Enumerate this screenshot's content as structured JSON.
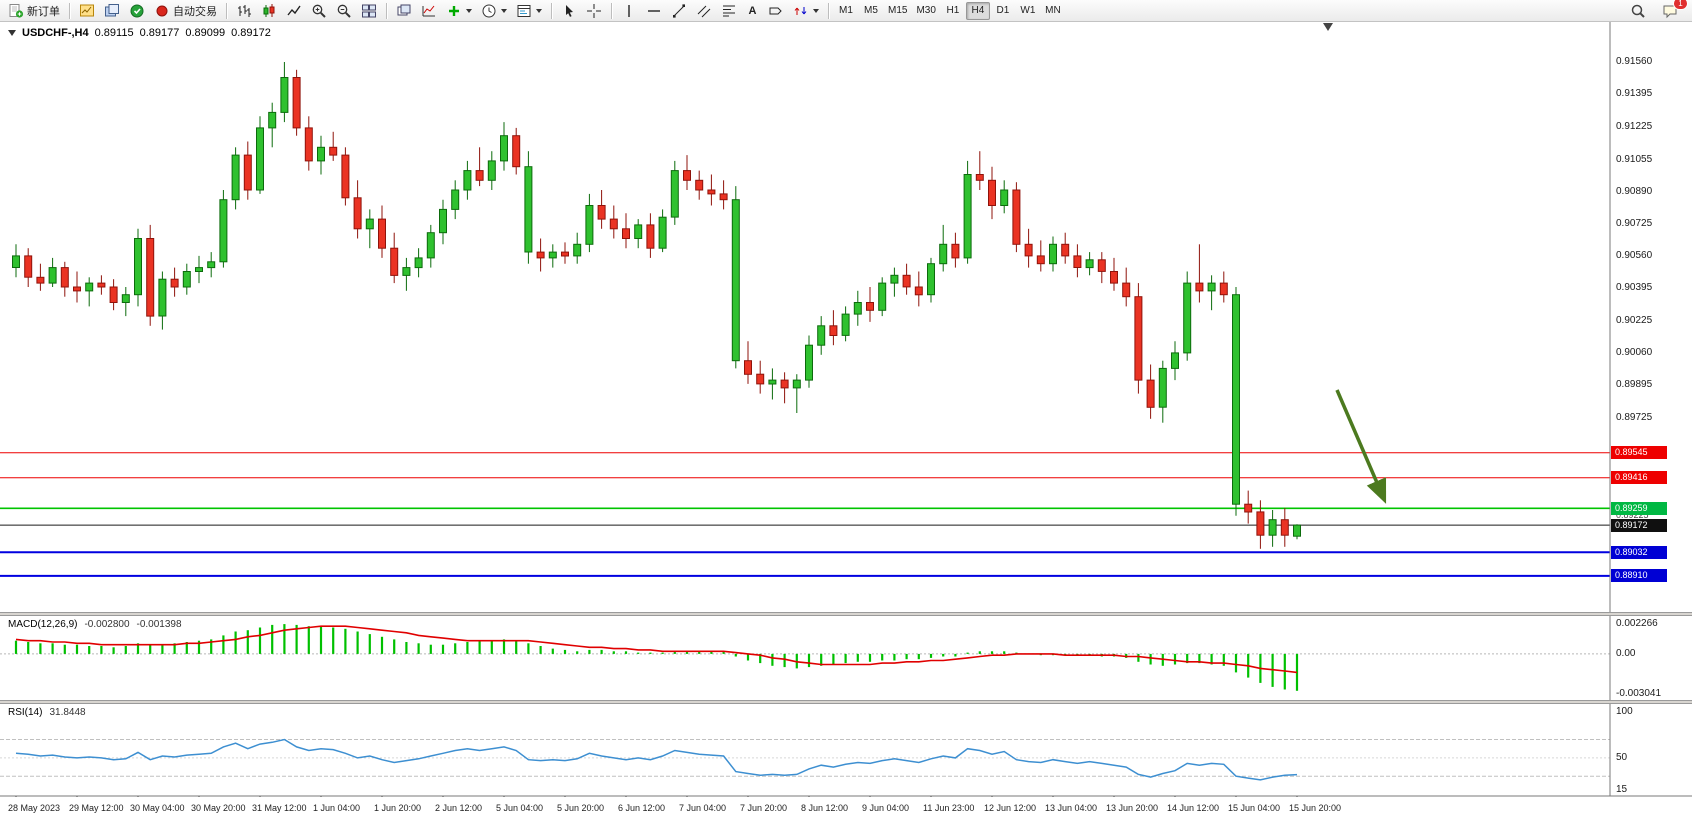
{
  "toolbar": {
    "new_order_label": "新订单",
    "auto_trading_label": "自动交易",
    "text_tool_label": "A",
    "timeframes": [
      "M1",
      "M5",
      "M15",
      "M30",
      "H1",
      "H4",
      "D1",
      "W1",
      "MN"
    ],
    "active_timeframe": "H4",
    "notification_count": "1",
    "icons": [
      "new-order",
      "charts",
      "profiles",
      "data-window",
      "auto-trading",
      "bar-chart",
      "candlestick-chart",
      "line-chart",
      "zoom-in",
      "zoom-out",
      "tile-windows",
      "arrange-windows",
      "indicators",
      "add-indicator",
      "periods",
      "templates",
      "cursor",
      "crosshair",
      "vertical-line",
      "horizontal-line",
      "trendline",
      "equidistant-channel",
      "fibonacci",
      "text",
      "text-label",
      "arrows",
      "search",
      "chat"
    ]
  },
  "chart_title": {
    "symbol": "USDCHF-,H4",
    "open": "0.89115",
    "high": "0.89177",
    "low": "0.89099",
    "close": "0.89172"
  },
  "colors": {
    "bull": "#2fc12f",
    "bull_border": "#0c6b0c",
    "bear": "#ea3323",
    "bear_border": "#8f130b",
    "line_red": "#ee0000",
    "line_green": "#00c400",
    "line_blue": "#0000e0",
    "current": "#1a1a1a",
    "badge_red": "#ee0000",
    "badge_green": "#00b843",
    "badge_blue": "#0000d4",
    "badge_black": "#101010",
    "macd_hist": "#00c000",
    "macd_signal": "#e00000",
    "rsi_line": "#3d8fd1",
    "arrow": "#4c7a1f"
  },
  "chart_data": {
    "type": "candlestick",
    "symbol": "USDCHF",
    "timeframe": "H4",
    "price_range": {
      "top": 0.9165,
      "bottom": 0.886
    },
    "price_axis": [
      "0.91560",
      "0.91395",
      "0.91225",
      "0.91055",
      "0.90890",
      "0.90725",
      "0.90560",
      "0.90395",
      "0.90225",
      "0.90060",
      "0.89895",
      "0.89725"
    ],
    "levels": [
      {
        "value": "0.89545",
        "price": 0.89545,
        "style": "red"
      },
      {
        "value": "0.89416",
        "price": 0.89416,
        "style": "red"
      },
      {
        "value": "0.89259",
        "price": 0.89259,
        "style": "green"
      },
      {
        "value": "0.89225",
        "price": 0.89225,
        "style": "plain"
      },
      {
        "value": "0.89172",
        "price": 0.89172,
        "style": "current"
      },
      {
        "value": "0.89032",
        "price": 0.89032,
        "style": "blue"
      },
      {
        "value": "0.88910",
        "price": 0.8891,
        "style": "blue"
      }
    ],
    "time_labels": [
      "28 May 2023",
      "29 May 12:00",
      "30 May 04:00",
      "30 May 20:00",
      "31 May 12:00",
      "1 Jun 04:00",
      "1 Jun 20:00",
      "2 Jun 12:00",
      "5 Jun 04:00",
      "5 Jun 20:00",
      "6 Jun 12:00",
      "7 Jun 04:00",
      "7 Jun 20:00",
      "8 Jun 12:00",
      "9 Jun 04:00",
      "11 Jun 23:00",
      "12 Jun 12:00",
      "13 Jun 04:00",
      "13 Jun 20:00",
      "14 Jun 12:00",
      "15 Jun 04:00",
      "15 Jun 20:00"
    ],
    "annotations": [
      {
        "type": "arrow-down-right",
        "color": "#4c7a1f"
      }
    ],
    "ohlc": [
      [
        0.905,
        0.9062,
        0.9045,
        0.9056
      ],
      [
        0.9056,
        0.906,
        0.904,
        0.9045
      ],
      [
        0.9045,
        0.9052,
        0.9038,
        0.9042
      ],
      [
        0.9042,
        0.9055,
        0.904,
        0.905
      ],
      [
        0.905,
        0.9053,
        0.9035,
        0.904
      ],
      [
        0.904,
        0.9048,
        0.9032,
        0.9038
      ],
      [
        0.9038,
        0.9045,
        0.903,
        0.9042
      ],
      [
        0.9042,
        0.9046,
        0.9036,
        0.904
      ],
      [
        0.904,
        0.9044,
        0.9028,
        0.9032
      ],
      [
        0.9032,
        0.904,
        0.9025,
        0.9036
      ],
      [
        0.9036,
        0.907,
        0.903,
        0.9065
      ],
      [
        0.9065,
        0.9072,
        0.902,
        0.9025
      ],
      [
        0.9025,
        0.9048,
        0.9018,
        0.9044
      ],
      [
        0.9044,
        0.905,
        0.9035,
        0.904
      ],
      [
        0.904,
        0.9052,
        0.9036,
        0.9048
      ],
      [
        0.9048,
        0.9056,
        0.9042,
        0.905
      ],
      [
        0.905,
        0.9058,
        0.9045,
        0.9053
      ],
      [
        0.9053,
        0.909,
        0.905,
        0.9085
      ],
      [
        0.9085,
        0.9112,
        0.908,
        0.9108
      ],
      [
        0.9108,
        0.9115,
        0.9085,
        0.909
      ],
      [
        0.909,
        0.9128,
        0.9088,
        0.9122
      ],
      [
        0.9122,
        0.9135,
        0.9112,
        0.913
      ],
      [
        0.913,
        0.9156,
        0.9125,
        0.9148
      ],
      [
        0.9148,
        0.9152,
        0.9118,
        0.9122
      ],
      [
        0.9122,
        0.9128,
        0.91,
        0.9105
      ],
      [
        0.9105,
        0.9118,
        0.9098,
        0.9112
      ],
      [
        0.9112,
        0.912,
        0.9105,
        0.9108
      ],
      [
        0.9108,
        0.9112,
        0.9082,
        0.9086
      ],
      [
        0.9086,
        0.9095,
        0.9065,
        0.907
      ],
      [
        0.907,
        0.908,
        0.906,
        0.9075
      ],
      [
        0.9075,
        0.9082,
        0.9055,
        0.906
      ],
      [
        0.906,
        0.9068,
        0.9042,
        0.9046
      ],
      [
        0.9046,
        0.9055,
        0.9038,
        0.905
      ],
      [
        0.905,
        0.906,
        0.9045,
        0.9055
      ],
      [
        0.9055,
        0.9072,
        0.905,
        0.9068
      ],
      [
        0.9068,
        0.9085,
        0.9062,
        0.908
      ],
      [
        0.908,
        0.9095,
        0.9075,
        0.909
      ],
      [
        0.909,
        0.9105,
        0.9085,
        0.91
      ],
      [
        0.91,
        0.9112,
        0.9092,
        0.9095
      ],
      [
        0.9095,
        0.911,
        0.909,
        0.9105
      ],
      [
        0.9105,
        0.9125,
        0.91,
        0.9118
      ],
      [
        0.9118,
        0.9122,
        0.9098,
        0.9102
      ],
      [
        0.9102,
        0.911,
        0.9052,
        0.9058,
        "up"
      ],
      [
        0.9058,
        0.9065,
        0.9048,
        0.9055
      ],
      [
        0.9055,
        0.9062,
        0.905,
        0.9058
      ],
      [
        0.9058,
        0.9063,
        0.9052,
        0.9056
      ],
      [
        0.9056,
        0.9068,
        0.9052,
        0.9062
      ],
      [
        0.9062,
        0.9088,
        0.9058,
        0.9082
      ],
      [
        0.9082,
        0.909,
        0.907,
        0.9075
      ],
      [
        0.9075,
        0.9082,
        0.9065,
        0.907
      ],
      [
        0.907,
        0.9078,
        0.906,
        0.9065
      ],
      [
        0.9065,
        0.9075,
        0.906,
        0.9072
      ],
      [
        0.9072,
        0.9078,
        0.9055,
        0.906
      ],
      [
        0.906,
        0.908,
        0.9058,
        0.9076
      ],
      [
        0.9076,
        0.9105,
        0.9072,
        0.91
      ],
      [
        0.91,
        0.9108,
        0.909,
        0.9095
      ],
      [
        0.9095,
        0.91,
        0.9085,
        0.909
      ],
      [
        0.909,
        0.9098,
        0.9082,
        0.9088
      ],
      [
        0.9088,
        0.9095,
        0.908,
        0.9085
      ],
      [
        0.9085,
        0.9092,
        0.8998,
        0.9002,
        "up"
      ],
      [
        0.9002,
        0.9012,
        0.899,
        0.8995
      ],
      [
        0.8995,
        0.9002,
        0.8985,
        0.899
      ],
      [
        0.899,
        0.8998,
        0.8982,
        0.8992
      ],
      [
        0.8992,
        0.8996,
        0.898,
        0.8988
      ],
      [
        0.8988,
        0.8995,
        0.8975,
        0.8992
      ],
      [
        0.8992,
        0.9015,
        0.8988,
        0.901
      ],
      [
        0.901,
        0.9025,
        0.9005,
        0.902
      ],
      [
        0.902,
        0.9028,
        0.901,
        0.9015
      ],
      [
        0.9015,
        0.903,
        0.9012,
        0.9026
      ],
      [
        0.9026,
        0.9038,
        0.902,
        0.9032
      ],
      [
        0.9032,
        0.904,
        0.9022,
        0.9028
      ],
      [
        0.9028,
        0.9045,
        0.9025,
        0.9042
      ],
      [
        0.9042,
        0.905,
        0.9035,
        0.9046
      ],
      [
        0.9046,
        0.9052,
        0.9036,
        0.904
      ],
      [
        0.904,
        0.9048,
        0.903,
        0.9036
      ],
      [
        0.9036,
        0.9055,
        0.9032,
        0.9052
      ],
      [
        0.9052,
        0.9072,
        0.9048,
        0.9062
      ],
      [
        0.9062,
        0.9068,
        0.905,
        0.9055
      ],
      [
        0.9055,
        0.9105,
        0.9052,
        0.9098
      ],
      [
        0.9098,
        0.911,
        0.909,
        0.9095
      ],
      [
        0.9095,
        0.9102,
        0.9075,
        0.9082
      ],
      [
        0.9082,
        0.9095,
        0.9078,
        0.909
      ],
      [
        0.909,
        0.9094,
        0.9058,
        0.9062
      ],
      [
        0.9062,
        0.907,
        0.905,
        0.9056
      ],
      [
        0.9056,
        0.9064,
        0.9048,
        0.9052
      ],
      [
        0.9052,
        0.9066,
        0.9048,
        0.9062
      ],
      [
        0.9062,
        0.9068,
        0.9052,
        0.9056
      ],
      [
        0.9056,
        0.9062,
        0.9045,
        0.905
      ],
      [
        0.905,
        0.9058,
        0.9046,
        0.9054
      ],
      [
        0.9054,
        0.9058,
        0.9042,
        0.9048
      ],
      [
        0.9048,
        0.9055,
        0.9038,
        0.9042
      ],
      [
        0.9042,
        0.905,
        0.903,
        0.9035
      ],
      [
        0.9035,
        0.9042,
        0.8985,
        0.8992
      ],
      [
        0.8992,
        0.9,
        0.8972,
        0.8978
      ],
      [
        0.8978,
        0.9002,
        0.897,
        0.8998
      ],
      [
        0.8998,
        0.9012,
        0.8992,
        0.9006
      ],
      [
        0.9006,
        0.9048,
        0.9002,
        0.9042
      ],
      [
        0.9042,
        0.9062,
        0.9032,
        0.9038
      ],
      [
        0.9038,
        0.9046,
        0.9028,
        0.9042
      ],
      [
        0.9042,
        0.9048,
        0.9032,
        0.9036
      ],
      [
        0.9036,
        0.904,
        0.8922,
        0.8928,
        "up"
      ],
      [
        0.8928,
        0.8935,
        0.8918,
        0.8924
      ],
      [
        0.8924,
        0.893,
        0.8905,
        0.8912
      ],
      [
        0.8912,
        0.8925,
        0.8906,
        0.892
      ],
      [
        0.892,
        0.8926,
        0.8906,
        0.8912
      ],
      [
        0.89115,
        0.89177,
        0.89099,
        0.89172
      ]
    ],
    "macd": {
      "name": "MACD(12,26,9)",
      "main_value": "-0.002800",
      "signal_value": "-0.001398",
      "axis": [
        "0.002266",
        "0.00",
        "-0.003041"
      ],
      "histogram": [
        0.001,
        0.0009,
        0.0008,
        0.0008,
        0.0007,
        0.0007,
        0.0006,
        0.0006,
        0.0005,
        0.0006,
        0.0008,
        0.0007,
        0.0007,
        0.0008,
        0.0009,
        0.001,
        0.0011,
        0.0014,
        0.0017,
        0.0018,
        0.002,
        0.0022,
        0.00226,
        0.0022,
        0.0021,
        0.0021,
        0.002,
        0.0019,
        0.0017,
        0.0015,
        0.0013,
        0.0011,
        0.0009,
        0.0008,
        0.0007,
        0.0007,
        0.0008,
        0.0009,
        0.001,
        0.001,
        0.0011,
        0.001,
        0.0008,
        0.0006,
        0.0004,
        0.0003,
        0.0002,
        0.0003,
        0.0003,
        0.0002,
        0.0002,
        0.0001,
        0.0001,
        0.0001,
        0.0002,
        0.0002,
        0.0002,
        0.0002,
        0.0002,
        -0.0002,
        -0.0005,
        -0.0007,
        -0.0009,
        -0.001,
        -0.0011,
        -0.001,
        -0.0009,
        -0.0008,
        -0.0007,
        -0.0006,
        -0.0006,
        -0.0005,
        -0.0005,
        -0.0004,
        -0.0004,
        -0.0003,
        -0.0002,
        -0.0002,
        0.0001,
        0.0002,
        0.0002,
        0.0002,
        0.0001,
        0.0,
        -0.0001,
        -0.0001,
        -0.0001,
        -0.0001,
        -0.0001,
        -0.0002,
        -0.0002,
        -0.0003,
        -0.0006,
        -0.0008,
        -0.0009,
        -0.0008,
        -0.0007,
        -0.0007,
        -0.0008,
        -0.0009,
        -0.0014,
        -0.0018,
        -0.0022,
        -0.0025,
        -0.0027,
        -0.0028
      ],
      "signal": [
        0.0011,
        0.001,
        0.001,
        0.0009,
        0.0009,
        0.0008,
        0.0008,
        0.0007,
        0.0007,
        0.0007,
        0.0007,
        0.0007,
        0.0007,
        0.0007,
        0.0008,
        0.0008,
        0.0009,
        0.001,
        0.0011,
        0.0013,
        0.0014,
        0.0016,
        0.0018,
        0.0019,
        0.002,
        0.0021,
        0.0021,
        0.0021,
        0.002,
        0.0019,
        0.0018,
        0.0017,
        0.0016,
        0.0014,
        0.0013,
        0.0012,
        0.0011,
        0.001,
        0.001,
        0.001,
        0.001,
        0.001,
        0.001,
        0.0009,
        0.0008,
        0.0007,
        0.0006,
        0.0005,
        0.0005,
        0.0004,
        0.0004,
        0.0003,
        0.0003,
        0.0002,
        0.0002,
        0.0002,
        0.0002,
        0.0002,
        0.0002,
        0.0001,
        0.0,
        -0.0001,
        -0.0003,
        -0.0004,
        -0.0006,
        -0.0007,
        -0.0008,
        -0.0008,
        -0.0008,
        -0.0008,
        -0.0008,
        -0.0007,
        -0.0007,
        -0.0006,
        -0.0006,
        -0.0005,
        -0.0005,
        -0.0004,
        -0.0003,
        -0.0002,
        -0.0001,
        -0.0001,
        0.0,
        0.0,
        0.0,
        0.0,
        -0.0001,
        -0.0001,
        -0.0001,
        -0.0001,
        -0.0001,
        -0.0002,
        -0.0002,
        -0.0003,
        -0.0004,
        -0.0005,
        -0.0006,
        -0.0006,
        -0.0007,
        -0.0007,
        -0.0008,
        -0.0009,
        -0.0011,
        -0.0012,
        -0.0013,
        -0.0014
      ]
    },
    "rsi": {
      "name": "RSI(14)",
      "value": "31.8448",
      "axis": [
        "100",
        "50",
        "15"
      ],
      "levels": [
        70,
        30
      ],
      "values": [
        55,
        54,
        52,
        53,
        51,
        50,
        51,
        50,
        48,
        49,
        56,
        48,
        52,
        51,
        53,
        54,
        55,
        62,
        66,
        60,
        65,
        67,
        70,
        62,
        58,
        60,
        59,
        55,
        50,
        52,
        48,
        45,
        47,
        49,
        52,
        55,
        58,
        60,
        58,
        60,
        62,
        58,
        48,
        47,
        48,
        47,
        49,
        55,
        52,
        50,
        48,
        50,
        48,
        52,
        58,
        56,
        54,
        53,
        52,
        35,
        33,
        31,
        32,
        31,
        32,
        38,
        42,
        40,
        43,
        45,
        44,
        47,
        49,
        47,
        45,
        49,
        52,
        50,
        60,
        58,
        54,
        57,
        48,
        46,
        45,
        48,
        46,
        44,
        46,
        44,
        42,
        40,
        32,
        29,
        33,
        36,
        44,
        42,
        44,
        43,
        30,
        28,
        26,
        29,
        31,
        31.8
      ]
    }
  }
}
